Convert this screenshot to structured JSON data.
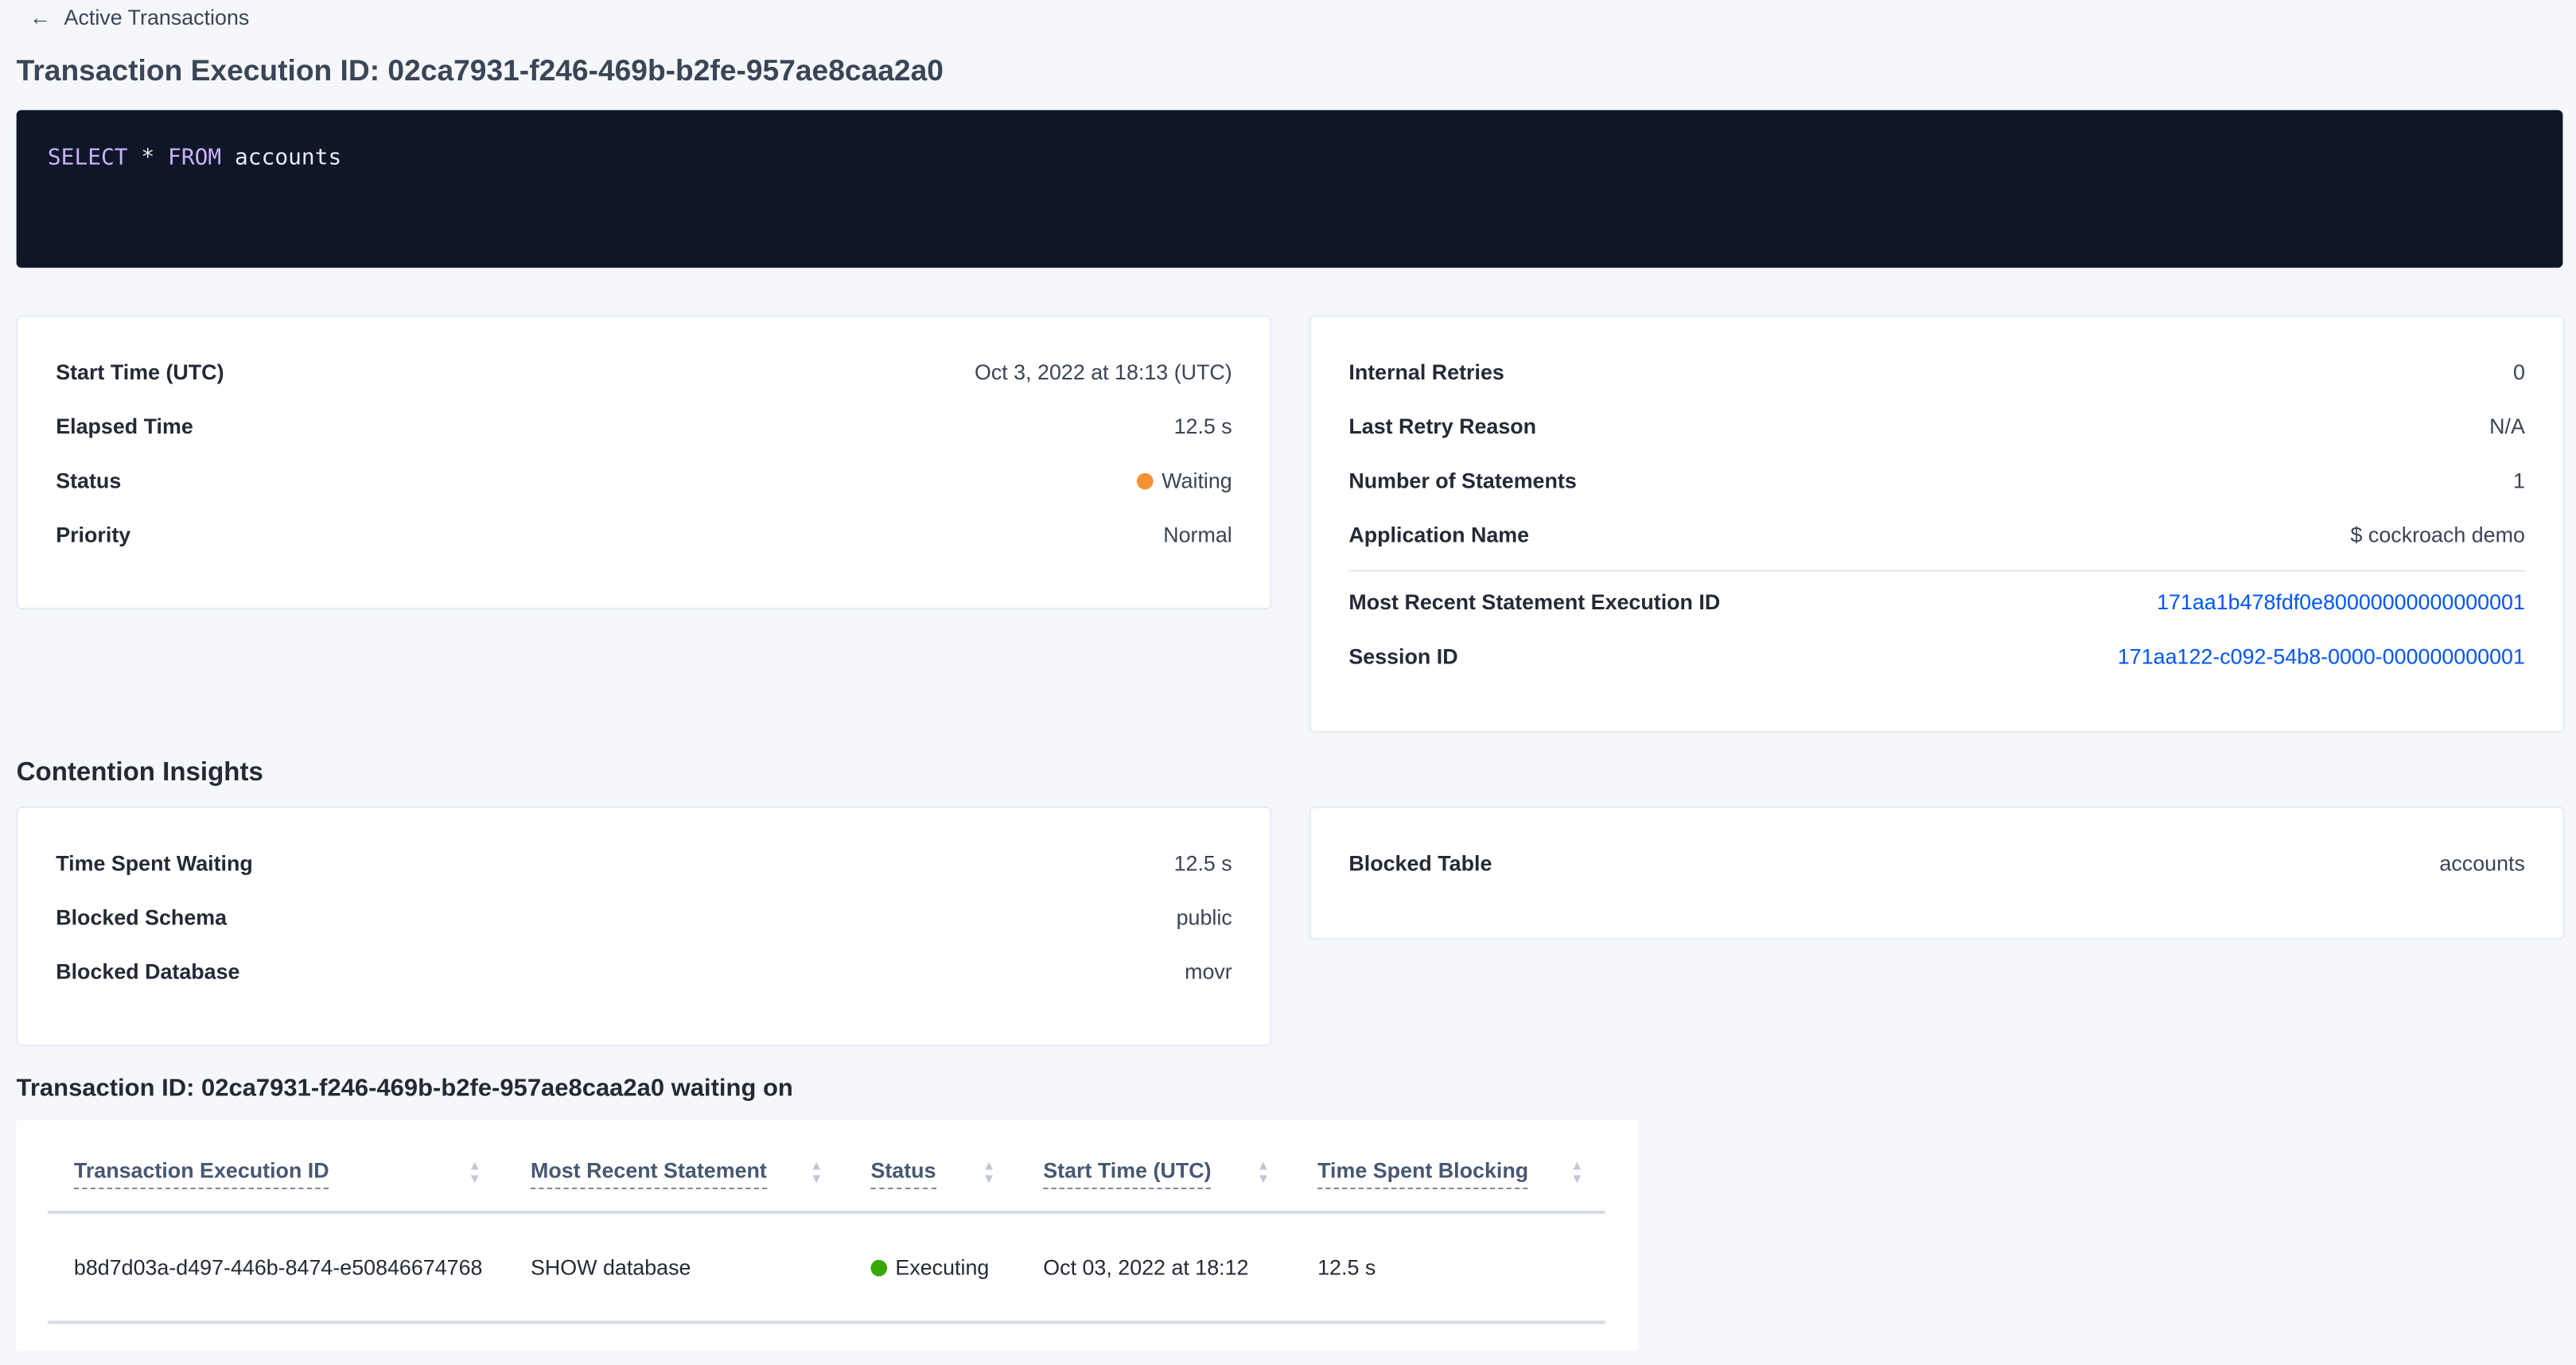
{
  "breadcrumb": {
    "back_label": "Active Transactions",
    "icon": "arrow-left-icon"
  },
  "page_title": "Transaction Execution ID: 02ca7931-f246-469b-b2fe-957ae8caa2a0",
  "sql": {
    "keyword1": "SELECT",
    "star": "*",
    "keyword2": "FROM",
    "table": "accounts"
  },
  "summary_left": [
    {
      "label": "Start Time (UTC)",
      "value": "Oct 3, 2022 at 18:13 (UTC)"
    },
    {
      "label": "Elapsed Time",
      "value": "12.5 s"
    },
    {
      "label": "Status",
      "value": "Waiting",
      "status_color": "#f79232"
    },
    {
      "label": "Priority",
      "value": "Normal"
    }
  ],
  "summary_right": [
    {
      "label": "Internal Retries",
      "value": "0"
    },
    {
      "label": "Last Retry Reason",
      "value": "N/A"
    },
    {
      "label": "Number of Statements",
      "value": "1"
    },
    {
      "label": "Application Name",
      "value": "$ cockroach demo"
    },
    {
      "label": "Most Recent Statement Execution ID",
      "value": "171aa1b478fdf0e80000000000000001"
    },
    {
      "label": "Session ID",
      "value": "171aa122-c092-54b8-0000-000000000001"
    }
  ],
  "contention": {
    "heading": "Contention Insights",
    "left": [
      {
        "label": "Time Spent Waiting",
        "value": "12.5 s"
      },
      {
        "label": "Blocked Schema",
        "value": "public"
      },
      {
        "label": "Blocked Database",
        "value": "movr"
      }
    ],
    "right": [
      {
        "label": "Blocked Table",
        "value": "accounts"
      }
    ]
  },
  "waiting": {
    "heading": "Transaction ID: 02ca7931-f246-469b-b2fe-957ae8caa2a0 waiting on",
    "columns": [
      "Transaction Execution ID",
      "Most Recent Statement",
      "Status",
      "Start Time (UTC)",
      "Time Spent Blocking"
    ],
    "rows": [
      {
        "id": "b8d7d03a-d497-446b-8474-e50846674768",
        "statement": "SHOW database",
        "status": "Executing",
        "status_color": "#37a806",
        "start": "Oct 03, 2022 at 18:12",
        "blocking": "12.5 s"
      }
    ]
  }
}
